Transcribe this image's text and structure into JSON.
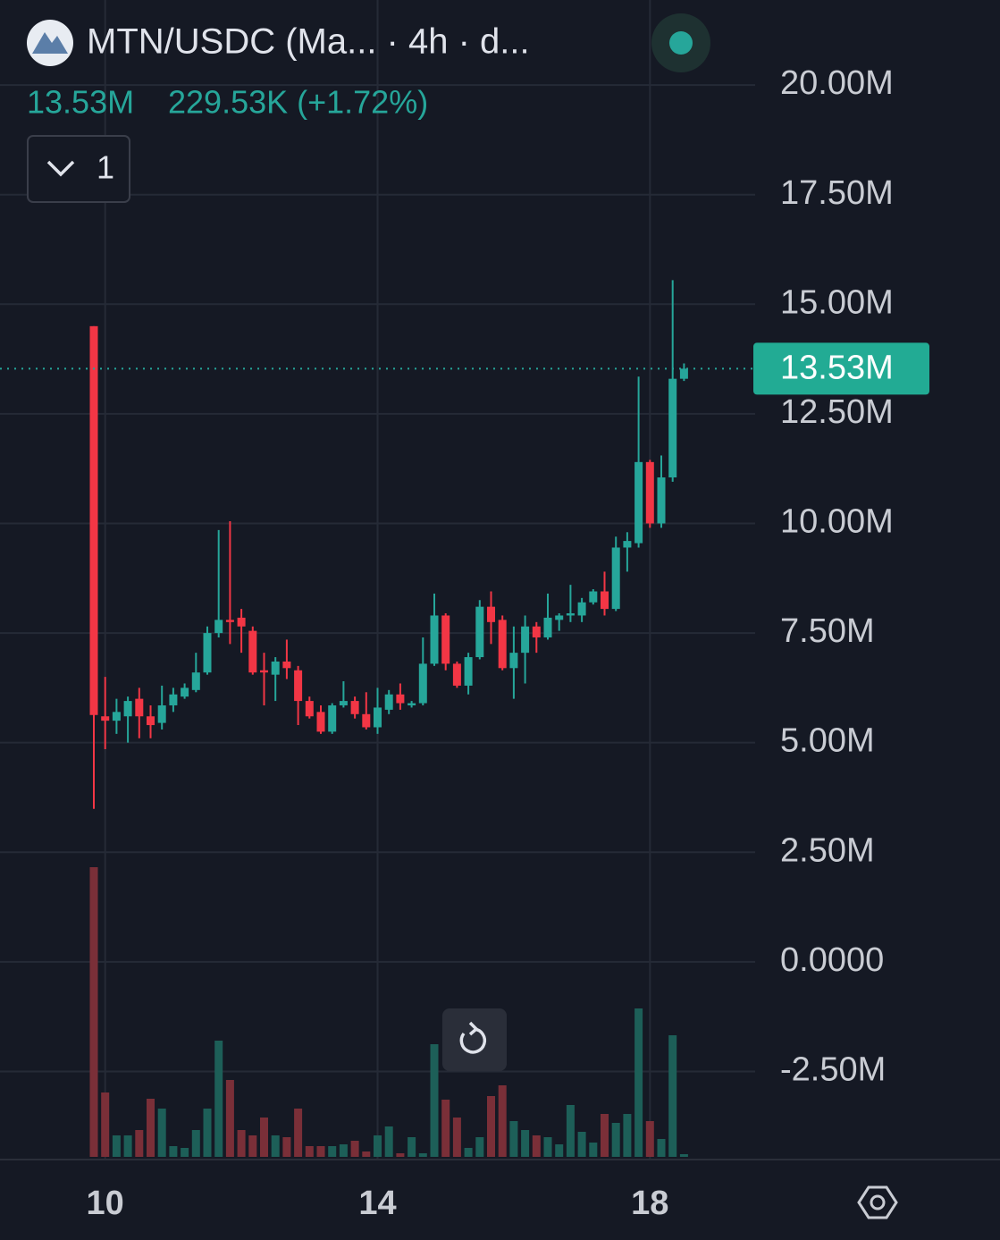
{
  "header": {
    "title": "MTN/USDC (Ma...  · 4h · d...",
    "price": "13.53M",
    "change": "229.53K (+1.72%)",
    "indicator_count": "1"
  },
  "chart_data": {
    "type": "candlestick",
    "categories": [
      null,
      "10",
      null,
      null,
      null,
      null,
      null,
      null,
      null,
      null,
      null,
      null,
      null,
      null,
      null,
      null,
      null,
      null,
      null,
      null,
      null,
      null,
      null,
      null,
      null,
      "14",
      null,
      null,
      null,
      null,
      null,
      null,
      null,
      null,
      null,
      null,
      null,
      null,
      null,
      null,
      null,
      null,
      null,
      null,
      null,
      null,
      null,
      null,
      null,
      "18",
      null,
      null,
      null
    ],
    "open": [
      14.5,
      5.6,
      5.5,
      5.6,
      6.0,
      5.6,
      5.45,
      5.85,
      6.05,
      6.2,
      6.6,
      7.5,
      7.8,
      7.85,
      7.55,
      6.65,
      6.55,
      6.85,
      6.65,
      5.95,
      5.7,
      5.25,
      5.85,
      5.95,
      5.65,
      5.35,
      5.75,
      6.1,
      5.85,
      5.9,
      6.8,
      7.9,
      6.8,
      6.3,
      6.95,
      8.1,
      7.8,
      6.7,
      7.05,
      7.65,
      7.4,
      7.8,
      7.9,
      7.9,
      8.2,
      8.45,
      8.05,
      9.45,
      9.55,
      11.4,
      10.0,
      11.05,
      13.3
    ],
    "high": [
      14.5,
      6.5,
      6.0,
      6.05,
      6.25,
      5.85,
      6.3,
      6.25,
      6.35,
      7.05,
      7.65,
      9.85,
      10.05,
      8.05,
      7.65,
      7.05,
      6.95,
      7.35,
      6.75,
      6.05,
      5.85,
      5.9,
      6.4,
      6.05,
      6.15,
      6.25,
      6.2,
      6.35,
      5.95,
      7.4,
      8.4,
      7.95,
      6.85,
      7.05,
      8.25,
      8.45,
      7.9,
      7.65,
      7.9,
      7.75,
      8.4,
      7.95,
      8.6,
      8.3,
      8.5,
      8.9,
      9.7,
      9.8,
      13.35,
      11.45,
      11.55,
      15.55,
      13.65
    ],
    "low": [
      3.49,
      4.85,
      5.2,
      5.0,
      5.1,
      5.1,
      5.3,
      5.7,
      6.0,
      6.15,
      6.55,
      7.4,
      7.25,
      7.05,
      6.55,
      5.85,
      5.95,
      6.45,
      5.4,
      5.55,
      5.2,
      5.2,
      5.8,
      5.55,
      5.3,
      5.2,
      5.65,
      5.75,
      5.8,
      5.85,
      6.75,
      6.65,
      6.25,
      6.1,
      6.9,
      7.25,
      6.65,
      6.0,
      6.35,
      7.05,
      7.35,
      7.55,
      7.75,
      7.75,
      8.15,
      7.9,
      8.0,
      8.9,
      9.45,
      9.9,
      9.9,
      10.95,
      13.25
    ],
    "close": [
      5.63,
      5.5,
      5.7,
      5.95,
      5.6,
      5.4,
      5.85,
      6.1,
      6.25,
      6.6,
      7.5,
      7.8,
      7.75,
      7.65,
      6.6,
      6.6,
      6.85,
      6.7,
      5.95,
      5.6,
      5.25,
      5.85,
      5.95,
      5.65,
      5.35,
      5.8,
      6.1,
      5.9,
      5.9,
      6.8,
      7.9,
      6.8,
      6.3,
      6.95,
      8.1,
      7.75,
      6.7,
      7.05,
      7.65,
      7.4,
      7.85,
      7.9,
      7.95,
      8.2,
      8.45,
      8.05,
      9.45,
      9.6,
      11.4,
      10.0,
      11.05,
      13.3,
      13.53
    ],
    "volume": [
      324,
      72,
      24,
      24,
      30,
      65,
      54,
      12,
      10,
      30,
      54,
      130,
      86,
      30,
      24,
      44,
      24,
      22,
      54,
      12,
      12,
      12,
      14,
      18,
      6,
      24,
      34,
      4,
      22,
      4,
      126,
      64,
      44,
      10,
      22,
      68,
      80,
      40,
      30,
      24,
      22,
      14,
      58,
      28,
      16,
      48,
      38,
      48,
      166,
      40,
      20,
      136,
      3
    ],
    "up_color": "#26a69a",
    "down_color": "#f23645",
    "up_volume_color": "#1d5f58",
    "down_volume_color": "#7a2f38",
    "ylim": [
      -4.51,
      21.94
    ],
    "yticks": [
      {
        "value": 20,
        "label": "20.00M"
      },
      {
        "value": 17.5,
        "label": "17.50M"
      },
      {
        "value": 15,
        "label": "15.00M"
      },
      {
        "value": 12.5,
        "label": "12.50M"
      },
      {
        "value": 10,
        "label": "10.00M"
      },
      {
        "value": 7.5,
        "label": "7.50M"
      },
      {
        "value": 5,
        "label": "5.00M"
      },
      {
        "value": 2.5,
        "label": "2.50M"
      },
      {
        "value": 0,
        "label": "0.0000"
      },
      {
        "value": -2.5,
        "label": "-2.50M"
      }
    ],
    "last_price_label": "13.53M",
    "grid": true
  }
}
